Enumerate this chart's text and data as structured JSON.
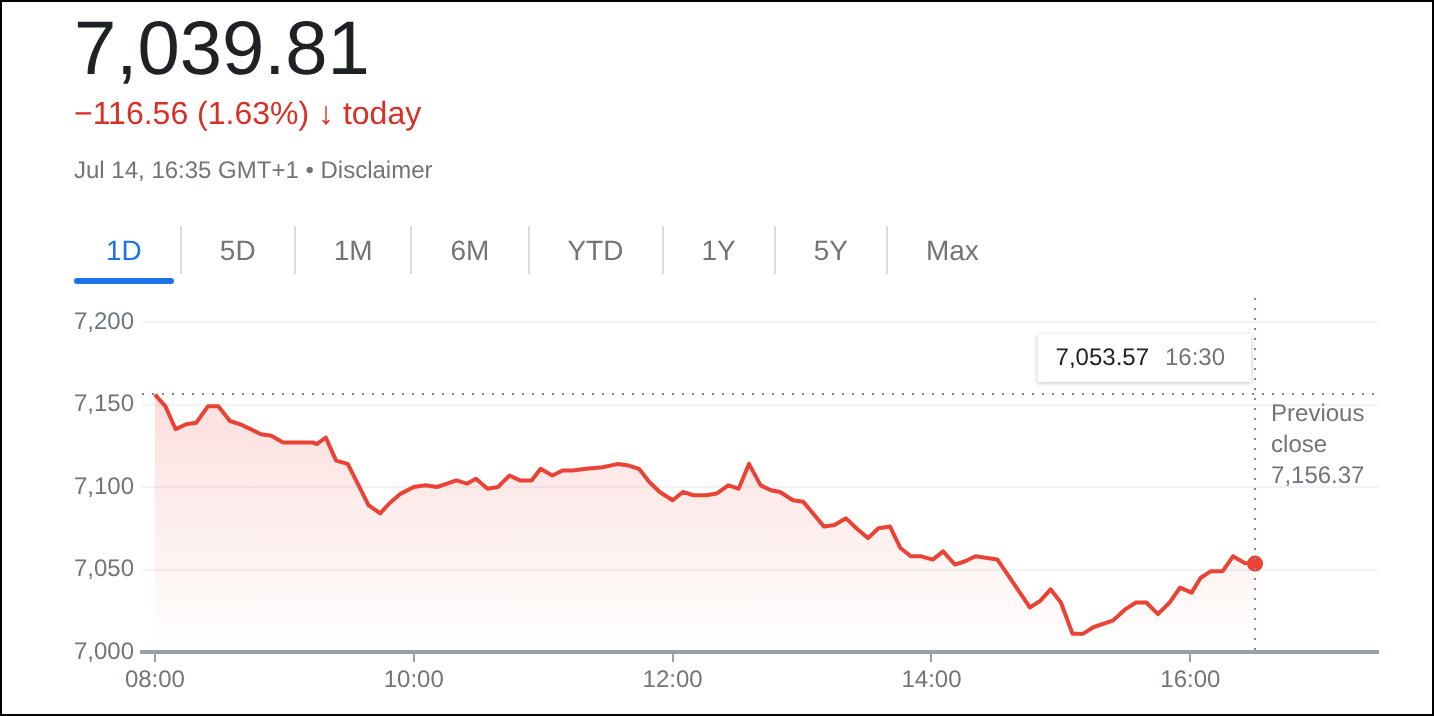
{
  "chart_data": {
    "type": "area",
    "title": "7,039.81",
    "subtitle": "−116.56 (1.63%) ↓ today",
    "annotations": [
      "Jul 14, 16:35 GMT+1 • Disclaimer",
      "1D",
      "5D",
      "1M",
      "6M",
      "YTD",
      "1Y",
      "5Y",
      "Max",
      "7,053.57  16:30"
    ],
    "series": [
      {
        "color": "#ea4335",
        "x": [
          8.0,
          8.08,
          8.16,
          8.24,
          8.32,
          8.41,
          8.49,
          8.58,
          8.66,
          8.82,
          8.9,
          8.99,
          9.07,
          9.22,
          9.25,
          9.32,
          9.4,
          9.49,
          9.65,
          9.74,
          9.81,
          9.9,
          10.0,
          10.09,
          10.18,
          10.33,
          10.41,
          10.48,
          10.57,
          10.65,
          10.74,
          10.82,
          10.91,
          10.98,
          11.07,
          11.15,
          11.23,
          11.33,
          11.46,
          11.58,
          11.66,
          11.74,
          11.82,
          11.9,
          12.0,
          12.08,
          12.16,
          12.26,
          12.34,
          12.43,
          12.51,
          12.59,
          12.68,
          12.76,
          12.83,
          12.93,
          13.01,
          13.17,
          13.25,
          13.34,
          13.42,
          13.51,
          13.59,
          13.68,
          13.76,
          13.84,
          13.92,
          14.01,
          14.09,
          14.18,
          14.26,
          14.34,
          14.43,
          14.51,
          14.64,
          14.76,
          14.84,
          14.92,
          15.0,
          15.09,
          15.17,
          15.25,
          15.4,
          15.5,
          15.58,
          15.66,
          15.75,
          15.84,
          15.92,
          16.01,
          16.08,
          16.16,
          16.25,
          16.33,
          16.42,
          16.5
        ],
        "values": [
          7156,
          7149,
          7135,
          7138,
          7139,
          7149,
          7149,
          7140,
          7138,
          7132,
          7131,
          7127,
          7127,
          7127,
          7126,
          7130,
          7116,
          7114,
          7089,
          7084,
          7090,
          7096,
          7100,
          7101,
          7100,
          7104,
          7102,
          7105,
          7099,
          7100,
          7107,
          7104,
          7104,
          7111,
          7107,
          7110,
          7110,
          7111,
          7112,
          7114,
          7113,
          7111,
          7103,
          7097,
          7092,
          7097,
          7095,
          7095,
          7096,
          7101,
          7099,
          7114,
          7101,
          7098,
          7097,
          7092,
          7091,
          7076,
          7077,
          7081,
          7075,
          7069,
          7075,
          7076,
          7063,
          7058,
          7058,
          7056,
          7061,
          7053,
          7055,
          7058,
          7057,
          7056,
          7041,
          7027,
          7031,
          7038,
          7030,
          7011,
          7011,
          7015,
          7019,
          7026,
          7030,
          7030,
          7023,
          7030,
          7039,
          7036,
          7045,
          7049,
          7049,
          7058,
          7054,
          7053.57
        ]
      }
    ],
    "xlim": [
      7.9,
      17.45
    ],
    "xticks": [
      {
        "value": 8,
        "label": "08:00"
      },
      {
        "value": 10,
        "label": "10:00"
      },
      {
        "value": 12,
        "label": "12:00"
      },
      {
        "value": 14,
        "label": "14:00"
      },
      {
        "value": 16,
        "label": "16:00"
      }
    ],
    "ylim": [
      7000,
      7200
    ],
    "yticks": [
      {
        "value": 7000,
        "label": "7,000"
      },
      {
        "value": 7050,
        "label": "7,050"
      },
      {
        "value": 7100,
        "label": "7,100"
      },
      {
        "value": 7150,
        "label": "7,150"
      },
      {
        "value": 7200,
        "label": "7,200"
      }
    ],
    "ref_lines": [
      {
        "axis": "y",
        "value": 7156.37,
        "label": "Previous close 7,156.37",
        "line_style": "dotted"
      },
      {
        "axis": "x",
        "value": 16.5,
        "line_style": "dotted"
      }
    ],
    "grid": "y",
    "legend": false,
    "marker": "none",
    "line_style": "solid"
  }
}
